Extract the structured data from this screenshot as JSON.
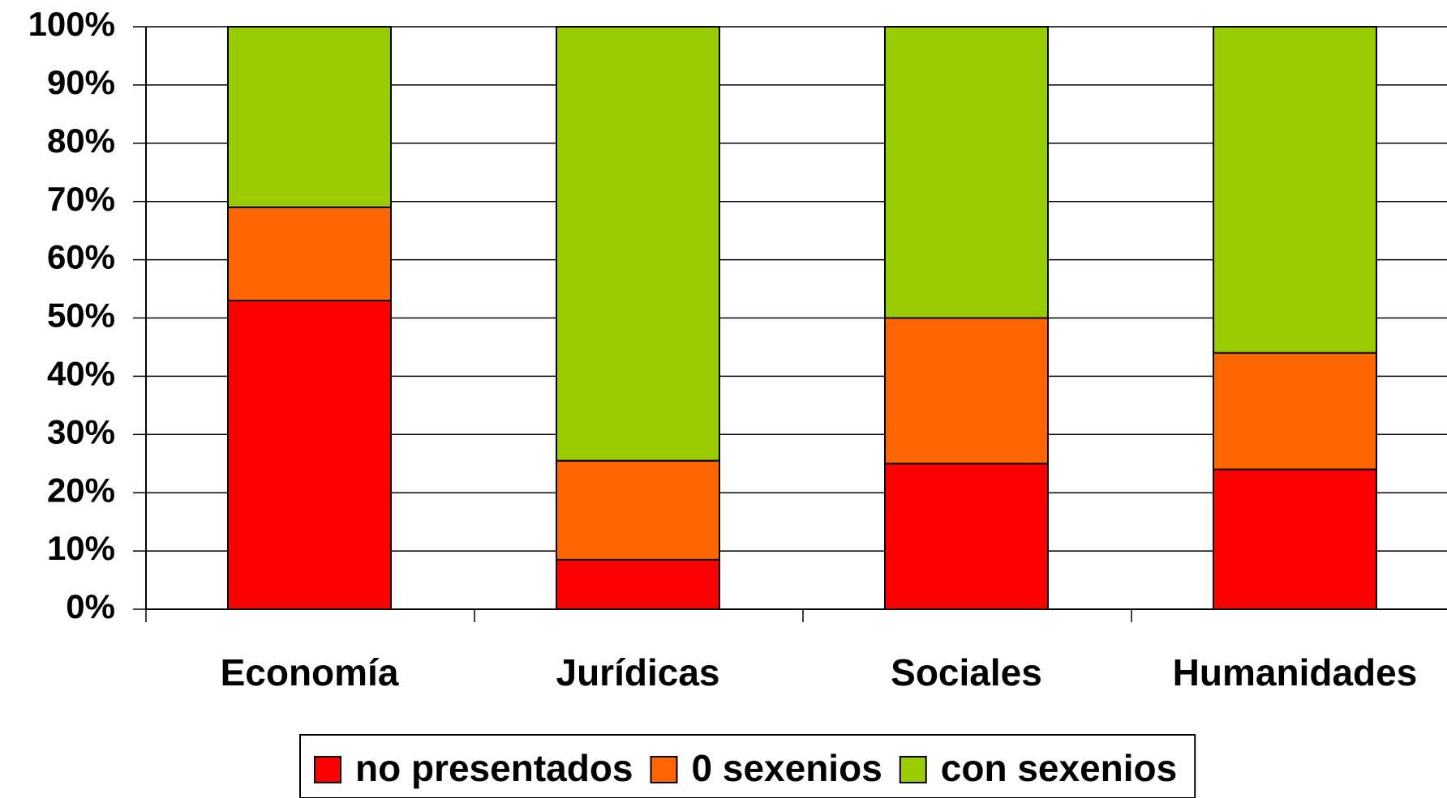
{
  "chart_data": {
    "type": "stacked_bar",
    "categories": [
      "Economía",
      "Jurídicas",
      "Sociales",
      "Humanidades"
    ],
    "series": [
      {
        "name": "no presentados",
        "color": "#ff0000",
        "values": [
          53,
          8.5,
          25,
          24
        ]
      },
      {
        "name": "0 sexenios",
        "color": "#ff6600",
        "values": [
          16,
          17,
          25,
          20
        ]
      },
      {
        "name": "con sexenios",
        "color": "#99cc00",
        "values": [
          31,
          74.5,
          50,
          56
        ]
      }
    ],
    "ylim": [
      0,
      100
    ],
    "yticks": [
      {
        "value": 0,
        "label": "0%"
      },
      {
        "value": 10,
        "label": "10%"
      },
      {
        "value": 20,
        "label": "20%"
      },
      {
        "value": 30,
        "label": "30%"
      },
      {
        "value": 40,
        "label": "40%"
      },
      {
        "value": 50,
        "label": "50%"
      },
      {
        "value": 60,
        "label": "60%"
      },
      {
        "value": 70,
        "label": "70%"
      },
      {
        "value": 80,
        "label": "80%"
      },
      {
        "value": 90,
        "label": "90%"
      },
      {
        "value": 100,
        "label": "100%"
      }
    ],
    "grid": true,
    "legend": "bottom"
  }
}
